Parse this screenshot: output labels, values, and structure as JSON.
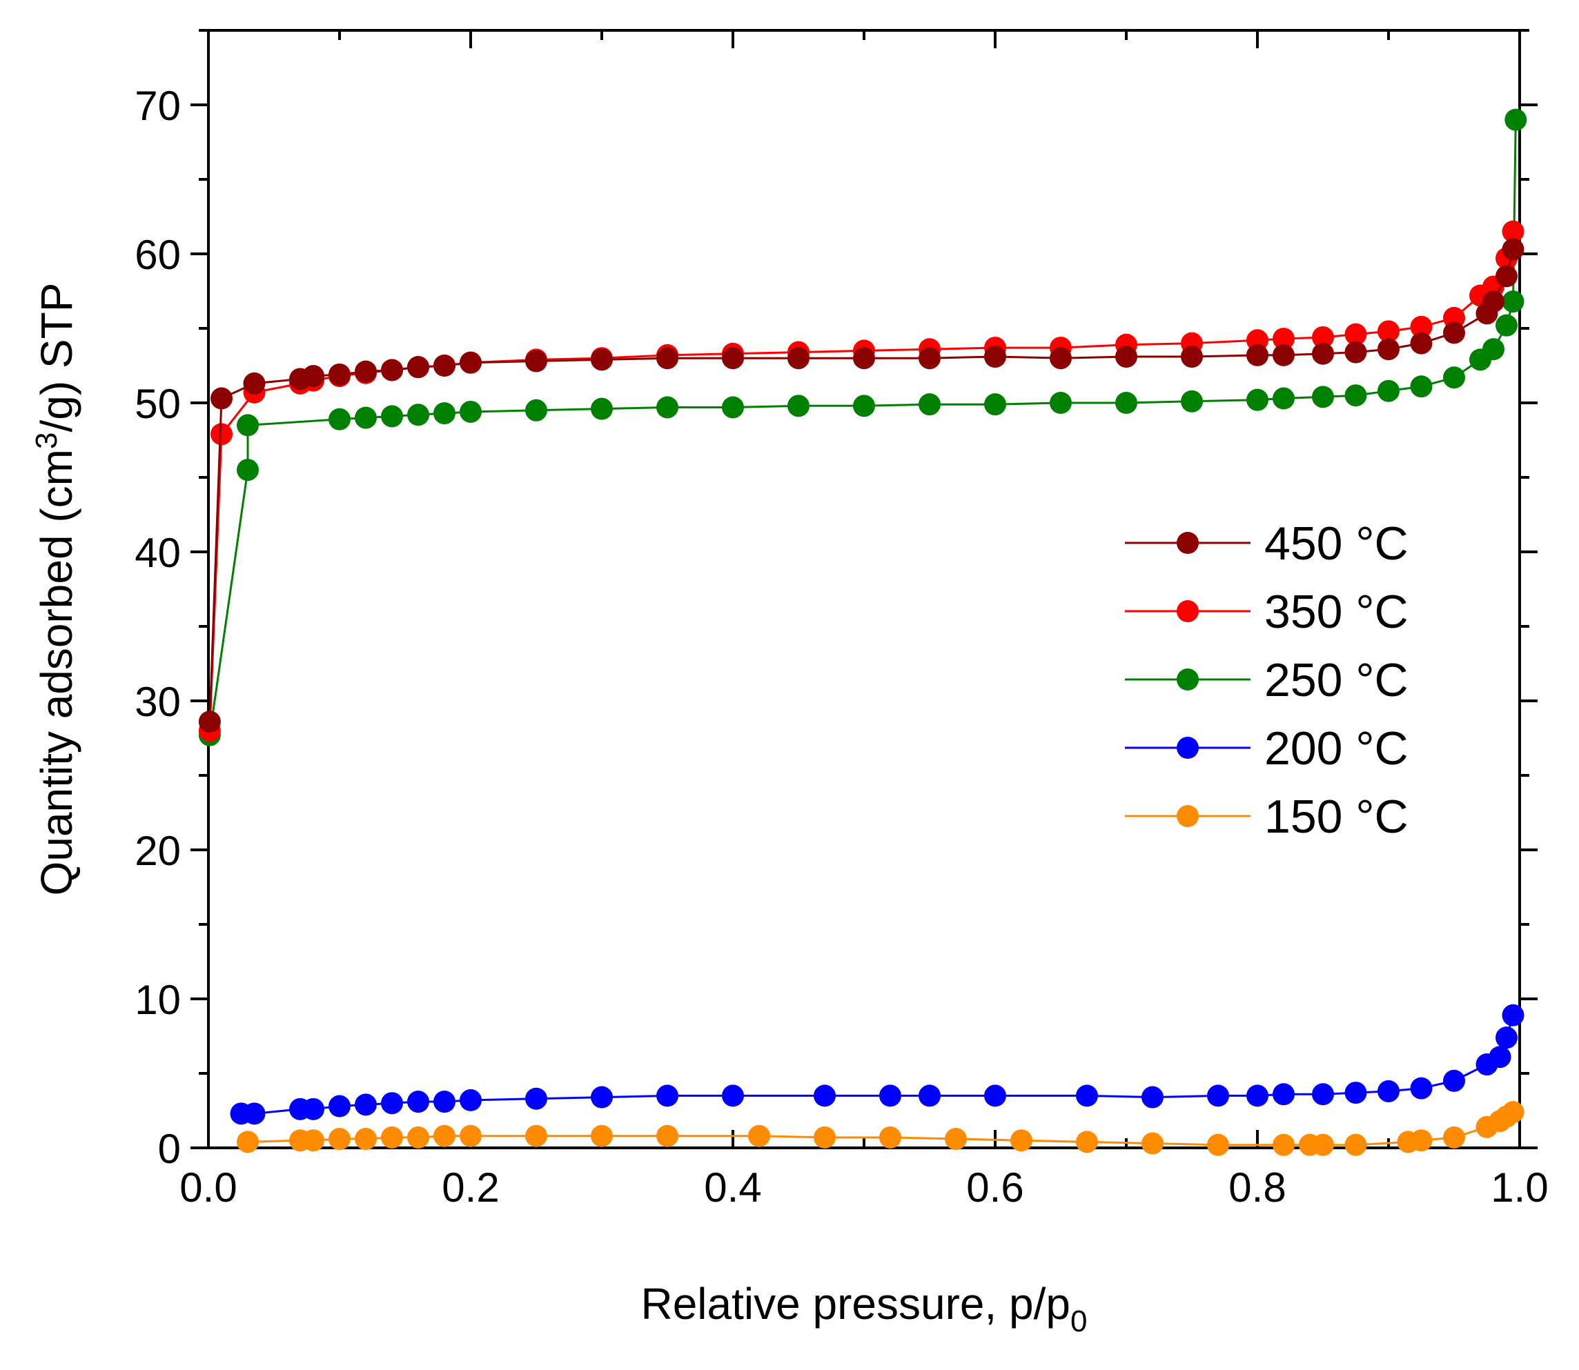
{
  "chart_data": {
    "type": "line",
    "title": "",
    "xlabel": "Relative pressure, p/p",
    "xlabel_subscript": "0",
    "ylabel_prefix": "Quantity adsorbed (cm",
    "ylabel_superscript": "3",
    "ylabel_suffix": "/g) STP",
    "xlim": [
      0.0,
      1.0
    ],
    "ylim": [
      0,
      75
    ],
    "x_ticks": [
      "0.0",
      "0.2",
      "0.4",
      "0.6",
      "0.8",
      "1.0"
    ],
    "x_tick_values": [
      0.0,
      0.2,
      0.4,
      0.6,
      0.8,
      1.0
    ],
    "y_ticks": [
      "0",
      "10",
      "20",
      "30",
      "40",
      "50",
      "60",
      "70"
    ],
    "y_tick_values": [
      0,
      10,
      20,
      30,
      40,
      50,
      60,
      70
    ],
    "grid": false,
    "legend_position": "right-center",
    "series": [
      {
        "name": "450 °C",
        "color": "#8b0000",
        "x": [
          0.001,
          0.01,
          0.035,
          0.07,
          0.08,
          0.1,
          0.12,
          0.14,
          0.16,
          0.18,
          0.2,
          0.25,
          0.3,
          0.35,
          0.4,
          0.45,
          0.5,
          0.55,
          0.6,
          0.65,
          0.7,
          0.75,
          0.8,
          0.82,
          0.85,
          0.875,
          0.9,
          0.925,
          0.95,
          0.975,
          0.98,
          0.99,
          0.995
        ],
        "y": [
          28.6,
          50.3,
          51.3,
          51.6,
          51.8,
          51.9,
          52.1,
          52.2,
          52.4,
          52.5,
          52.7,
          52.8,
          52.9,
          53.0,
          53.0,
          53.0,
          53.0,
          53.0,
          53.1,
          53.0,
          53.1,
          53.1,
          53.2,
          53.2,
          53.3,
          53.4,
          53.6,
          54.0,
          54.7,
          56.0,
          56.8,
          58.5,
          60.3
        ]
      },
      {
        "name": "350 °C",
        "color": "#ff0000",
        "x": [
          0.001,
          0.01,
          0.035,
          0.07,
          0.08,
          0.1,
          0.12,
          0.14,
          0.16,
          0.18,
          0.2,
          0.25,
          0.3,
          0.35,
          0.4,
          0.45,
          0.5,
          0.55,
          0.6,
          0.65,
          0.7,
          0.75,
          0.8,
          0.82,
          0.85,
          0.875,
          0.9,
          0.925,
          0.95,
          0.97,
          0.98,
          0.99,
          0.995
        ],
        "y": [
          28.0,
          47.9,
          50.7,
          51.3,
          51.5,
          51.8,
          52.0,
          52.2,
          52.4,
          52.5,
          52.7,
          52.9,
          53.0,
          53.2,
          53.3,
          53.4,
          53.5,
          53.6,
          53.7,
          53.7,
          53.9,
          54.0,
          54.2,
          54.3,
          54.4,
          54.6,
          54.8,
          55.1,
          55.7,
          57.2,
          57.8,
          59.7,
          61.5
        ]
      },
      {
        "name": "250 °C",
        "color": "#008000",
        "x": [
          0.001,
          0.03,
          0.03,
          0.1,
          0.12,
          0.14,
          0.16,
          0.18,
          0.2,
          0.25,
          0.3,
          0.35,
          0.4,
          0.45,
          0.5,
          0.55,
          0.6,
          0.65,
          0.7,
          0.75,
          0.8,
          0.82,
          0.85,
          0.875,
          0.9,
          0.925,
          0.95,
          0.97,
          0.98,
          0.99,
          0.995,
          0.997
        ],
        "y": [
          27.7,
          45.5,
          48.5,
          48.9,
          49.0,
          49.1,
          49.2,
          49.3,
          49.4,
          49.5,
          49.6,
          49.7,
          49.7,
          49.8,
          49.8,
          49.9,
          49.9,
          50.0,
          50.0,
          50.1,
          50.2,
          50.3,
          50.4,
          50.5,
          50.8,
          51.1,
          51.7,
          52.9,
          53.6,
          55.2,
          56.8,
          69.0
        ]
      },
      {
        "name": "200 °C",
        "color": "#0000ff",
        "x": [
          0.025,
          0.035,
          0.07,
          0.08,
          0.1,
          0.12,
          0.14,
          0.16,
          0.18,
          0.2,
          0.25,
          0.3,
          0.35,
          0.4,
          0.47,
          0.52,
          0.55,
          0.6,
          0.67,
          0.72,
          0.77,
          0.8,
          0.82,
          0.85,
          0.875,
          0.9,
          0.925,
          0.95,
          0.975,
          0.985,
          0.99,
          0.995
        ],
        "y": [
          2.3,
          2.3,
          2.6,
          2.6,
          2.8,
          2.9,
          3.0,
          3.1,
          3.1,
          3.2,
          3.3,
          3.4,
          3.5,
          3.5,
          3.5,
          3.5,
          3.5,
          3.5,
          3.5,
          3.4,
          3.5,
          3.5,
          3.6,
          3.6,
          3.7,
          3.8,
          4.0,
          4.5,
          5.6,
          6.1,
          7.4,
          8.9
        ]
      },
      {
        "name": "150 °C",
        "color": "#ff8c00",
        "x": [
          0.03,
          0.07,
          0.08,
          0.1,
          0.12,
          0.14,
          0.16,
          0.18,
          0.2,
          0.25,
          0.3,
          0.35,
          0.42,
          0.47,
          0.52,
          0.57,
          0.62,
          0.67,
          0.72,
          0.77,
          0.82,
          0.84,
          0.85,
          0.875,
          0.915,
          0.925,
          0.95,
          0.975,
          0.985,
          0.99,
          0.995
        ],
        "y": [
          0.4,
          0.5,
          0.5,
          0.6,
          0.6,
          0.7,
          0.7,
          0.8,
          0.8,
          0.8,
          0.8,
          0.8,
          0.8,
          0.7,
          0.7,
          0.6,
          0.5,
          0.4,
          0.3,
          0.2,
          0.2,
          0.2,
          0.2,
          0.2,
          0.4,
          0.5,
          0.7,
          1.4,
          1.8,
          2.1,
          2.4
        ]
      }
    ]
  }
}
